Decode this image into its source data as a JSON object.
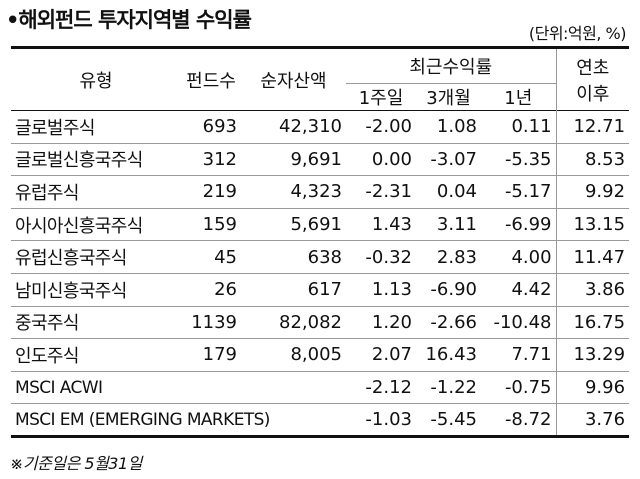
{
  "title": "•해외펀드 투자지역별 수익률",
  "unit": "(단위:억원, %)",
  "headers": {
    "type": "유형",
    "funds": "펀드수",
    "assets": "순자산액",
    "recent": "최근수익률",
    "w1": "1주일",
    "m3": "3개월",
    "y1": "1년",
    "ytd_line1": "연초",
    "ytd_line2": "이후"
  },
  "rows": [
    {
      "name": "글로벌주식",
      "funds": "693",
      "assets": "42,310",
      "w1": "-2.00",
      "m3": "1.08",
      "y1": "0.11",
      "ytd": "12.71"
    },
    {
      "name": "글로벌신흥국주식",
      "funds": "312",
      "assets": "9,691",
      "w1": "0.00",
      "m3": "-3.07",
      "y1": "-5.35",
      "ytd": "8.53"
    },
    {
      "name": "유럽주식",
      "funds": "219",
      "assets": "4,323",
      "w1": "-2.31",
      "m3": "0.04",
      "y1": "-5.17",
      "ytd": "9.92"
    },
    {
      "name": "아시아신흥국주식",
      "funds": "159",
      "assets": "5,691",
      "w1": "1.43",
      "m3": "3.11",
      "y1": "-6.99",
      "ytd": "13.15"
    },
    {
      "name": "유럽신흥국주식",
      "funds": "45",
      "assets": "638",
      "w1": "-0.32",
      "m3": "2.83",
      "y1": "4.00",
      "ytd": "11.47"
    },
    {
      "name": "남미신흥국주식",
      "funds": "26",
      "assets": "617",
      "w1": "1.13",
      "m3": "-6.90",
      "y1": "4.42",
      "ytd": "3.86"
    },
    {
      "name": "중국주식",
      "funds": "1139",
      "assets": "82,082",
      "w1": "1.20",
      "m3": "-2.66",
      "y1": "-10.48",
      "ytd": "16.75"
    },
    {
      "name": "인도주식",
      "funds": "179",
      "assets": "8,005",
      "w1": "2.07",
      "m3": "16.43",
      "y1": "7.71",
      "ytd": "13.29"
    }
  ],
  "benchmarks": [
    {
      "name": "MSCI ACWI",
      "w1": "-2.12",
      "m3": "-1.22",
      "y1": "-0.75",
      "ytd": "9.96"
    },
    {
      "name": "MSCI EM (EMERGING MARKETS)",
      "w1": "-1.03",
      "m3": "-5.45",
      "y1": "-8.72",
      "ytd": "3.76"
    }
  ],
  "footnote": "※기준일은 5월31일"
}
